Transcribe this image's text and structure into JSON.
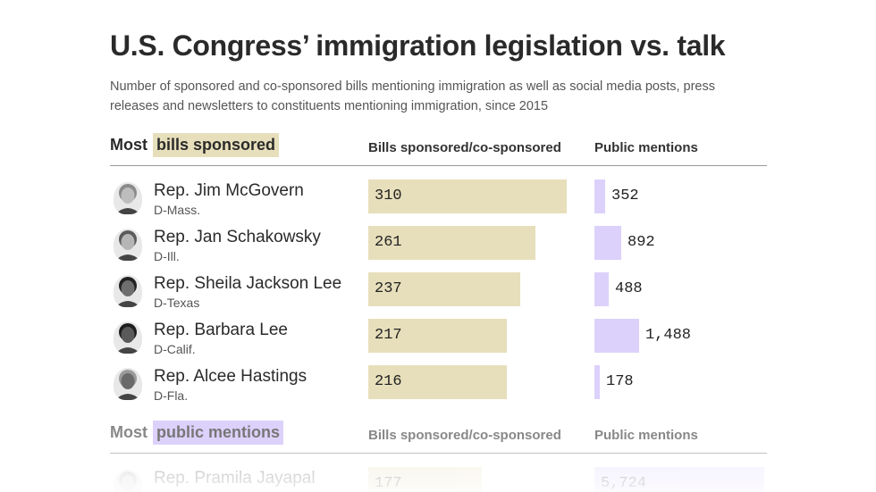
{
  "title": "U.S. Congress’ immigration legislation vs. talk",
  "subtitle": "Number of sponsored and co-sponsored bills mentioning immigration as well as social media posts, press releases and newsletters to constituents mentioning immigration, since 2015",
  "colors": {
    "bills": "#e7dfbb",
    "mentions": "#dcd1fb"
  },
  "chart_data": [
    {
      "type": "bar",
      "title": "Most bills sponsored",
      "section_label": {
        "prefix": "Most",
        "highlight": "bills sponsored"
      },
      "columns": [
        "Bills sponsored/co-sponsored",
        "Public mentions"
      ],
      "rows": [
        {
          "name": "Rep. Jim McGovern",
          "party": "D-Mass.",
          "bills": 310,
          "bills_label": "310",
          "mentions": 352,
          "mentions_label": "352"
        },
        {
          "name": "Rep. Jan Schakowsky",
          "party": "D-Ill.",
          "bills": 261,
          "bills_label": "261",
          "mentions": 892,
          "mentions_label": "892"
        },
        {
          "name": "Rep. Sheila Jackson Lee",
          "party": "D-Texas",
          "bills": 237,
          "bills_label": "237",
          "mentions": 488,
          "mentions_label": "488"
        },
        {
          "name": "Rep. Barbara Lee",
          "party": "D-Calif.",
          "bills": 217,
          "bills_label": "217",
          "mentions": 1488,
          "mentions_label": "1,488"
        },
        {
          "name": "Rep. Alcee Hastings",
          "party": "D-Fla.",
          "bills": 216,
          "bills_label": "216",
          "mentions": 178,
          "mentions_label": "178"
        }
      ]
    },
    {
      "type": "bar",
      "title": "Most public mentions",
      "section_label": {
        "prefix": "Most",
        "highlight": "public mentions"
      },
      "columns": [
        "Bills sponsored/co-sponsored",
        "Public mentions"
      ],
      "rows": [
        {
          "name": "Rep. Pramila Jayapal",
          "party": "",
          "bills": 177,
          "bills_label": "177",
          "mentions": 5724,
          "mentions_label": "5,724"
        }
      ]
    }
  ]
}
